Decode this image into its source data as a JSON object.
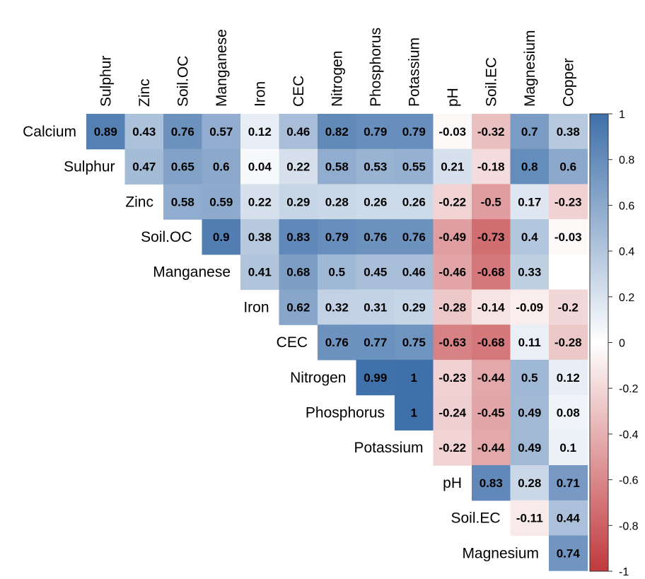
{
  "chart_data": {
    "type": "heatmap",
    "title": "",
    "variables_top": [
      "Sulphur",
      "Zinc",
      "Soil.OC",
      "Manganese",
      "Iron",
      "CEC",
      "Nitrogen",
      "Phosphorus",
      "Potassium",
      "pH",
      "Soil.EC",
      "Magnesium",
      "Copper"
    ],
    "variables_left": [
      "Calcium",
      "Sulphur",
      "Zinc",
      "Soil.OC",
      "Manganese",
      "Iron",
      "CEC",
      "Nitrogen",
      "Phosphorus",
      "Potassium",
      "pH",
      "Soil.EC",
      "Magnesium"
    ],
    "values": [
      [
        "0.89",
        "0.43",
        "0.76",
        "0.57",
        "0.12",
        "0.46",
        "0.82",
        "0.79",
        "0.79",
        "-0.03",
        "-0.32",
        "0.7",
        "0.38"
      ],
      [
        null,
        "0.47",
        "0.65",
        "0.6",
        "0.04",
        "0.22",
        "0.58",
        "0.53",
        "0.55",
        "0.21",
        "-0.18",
        "0.8",
        "0.6"
      ],
      [
        null,
        null,
        "0.58",
        "0.59",
        "0.22",
        "0.29",
        "0.28",
        "0.26",
        "0.26",
        "-0.22",
        "-0.5",
        "0.17",
        "-0.23"
      ],
      [
        null,
        null,
        null,
        "0.9",
        "0.38",
        "0.83",
        "0.79",
        "0.76",
        "0.76",
        "-0.49",
        "-0.73",
        "0.4",
        "-0.03"
      ],
      [
        null,
        null,
        null,
        null,
        "0.41",
        "0.68",
        "0.5",
        "0.45",
        "0.46",
        "-0.46",
        "-0.68",
        "0.33",
        ""
      ],
      [
        null,
        null,
        null,
        null,
        null,
        "0.62",
        "0.32",
        "0.31",
        "0.29",
        "-0.28",
        "-0.14",
        "-0.09",
        "-0.2"
      ],
      [
        null,
        null,
        null,
        null,
        null,
        null,
        "0.76",
        "0.77",
        "0.75",
        "-0.63",
        "-0.68",
        "0.11",
        "-0.28"
      ],
      [
        null,
        null,
        null,
        null,
        null,
        null,
        null,
        "0.99",
        "1",
        "-0.23",
        "-0.44",
        "0.5",
        "0.12"
      ],
      [
        null,
        null,
        null,
        null,
        null,
        null,
        null,
        null,
        "1",
        "-0.24",
        "-0.45",
        "0.49",
        "0.08"
      ],
      [
        null,
        null,
        null,
        null,
        null,
        null,
        null,
        null,
        null,
        "-0.22",
        "-0.44",
        "0.49",
        "0.1"
      ],
      [
        null,
        null,
        null,
        null,
        null,
        null,
        null,
        null,
        null,
        null,
        "0.83",
        "0.28",
        "0.71"
      ],
      [
        null,
        null,
        null,
        null,
        null,
        null,
        null,
        null,
        null,
        null,
        null,
        "-0.11",
        "0.44"
      ],
      [
        null,
        null,
        null,
        null,
        null,
        null,
        null,
        null,
        null,
        null,
        null,
        null,
        "0.74"
      ]
    ],
    "legend": {
      "ticks": [
        "1",
        "0.8",
        "0.6",
        "0.4",
        "0.2",
        "0",
        "-0.2",
        "-0.4",
        "-0.6",
        "-0.8",
        "-1"
      ],
      "min": -1,
      "max": 1,
      "low_color": "#c0393d",
      "mid_color": "#ffffff",
      "high_color": "#3f70aa",
      "placement": "right"
    }
  }
}
